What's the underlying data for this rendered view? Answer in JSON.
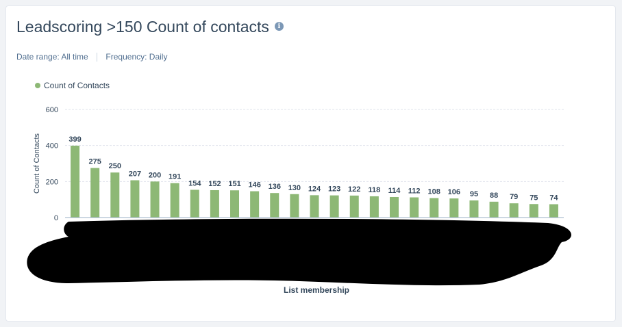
{
  "header": {
    "title": "Leadscoring >150 Count of contacts",
    "info_icon": "info-icon"
  },
  "filters": {
    "date_range_label": "Date range:",
    "date_range_value": "All time",
    "frequency_label": "Frequency:",
    "frequency_value": "Daily"
  },
  "colors": {
    "bar": "#8db875",
    "legend_dot": "#8db875",
    "text": "#33475b",
    "grid": "#dfe3eb"
  },
  "chart_data": {
    "type": "bar",
    "title": "Leadscoring >150 Count of contacts",
    "xlabel": "List membership",
    "ylabel": "Count of Contacts",
    "ylim": [
      0,
      600
    ],
    "yticks": [
      0,
      200,
      400,
      600
    ],
    "grid": true,
    "legend_position": "top-left",
    "series": [
      {
        "name": "Count of Contacts",
        "values": [
          399,
          275,
          250,
          207,
          200,
          191,
          154,
          152,
          151,
          146,
          136,
          130,
          124,
          123,
          122,
          118,
          114,
          112,
          108,
          106,
          95,
          88,
          79,
          75,
          74
        ]
      }
    ]
  }
}
